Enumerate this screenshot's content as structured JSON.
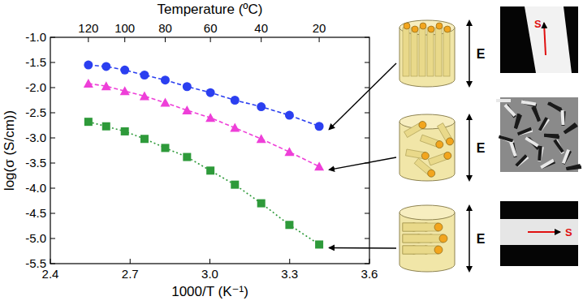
{
  "chart_data": {
    "type": "line",
    "x_label": "1000/T (K⁻¹)",
    "y_label": "log(σ (S/cm))",
    "x2_label": "Temperature (ºC)",
    "xlim": [
      2.4,
      3.6
    ],
    "xticks": [
      2.4,
      2.7,
      {
        "value": 3.0,
        "label": "3.0"
      },
      3.3,
      3.6
    ],
    "x2ticks": [
      {
        "value": 2.543,
        "label": "120"
      },
      {
        "value": 2.68,
        "label": "100"
      },
      {
        "value": 2.832,
        "label": "80"
      },
      {
        "value": 3.002,
        "label": "60"
      },
      {
        "value": 3.193,
        "label": "40"
      },
      {
        "value": 3.411,
        "label": "20"
      }
    ],
    "ylim": [
      -5.5,
      -1.0
    ],
    "yticks": [
      {
        "value": -1.0,
        "label": "-1.0"
      },
      {
        "value": -1.5,
        "label": "-1.5"
      },
      {
        "value": -2.0,
        "label": "-2.0"
      },
      {
        "value": -2.5,
        "label": "-2.5"
      },
      {
        "value": -3.0,
        "label": "-3.0"
      },
      {
        "value": -3.5,
        "label": "-3.5"
      },
      {
        "value": -4.0,
        "label": "-4.0"
      },
      {
        "value": -4.5,
        "label": "-4.5"
      },
      {
        "value": -5.0,
        "label": "-5.0"
      },
      {
        "value": -5.5,
        "label": "-5.5"
      }
    ],
    "grid": false,
    "x": [
      2.543,
      2.61,
      2.68,
      2.754,
      2.832,
      2.914,
      3.002,
      3.094,
      3.193,
      3.299,
      3.411
    ],
    "series": [
      {
        "color": "#2b3ff0",
        "marker": "circle",
        "line_style": "dashed",
        "values": [
          -1.55,
          -1.58,
          -1.65,
          -1.75,
          -1.85,
          -1.98,
          -2.1,
          -2.25,
          -2.38,
          -2.55,
          -2.77
        ]
      },
      {
        "color": "#ee3fd8",
        "marker": "triangle",
        "line_style": "dashed",
        "values": [
          -1.92,
          -1.97,
          -2.07,
          -2.17,
          -2.3,
          -2.45,
          -2.6,
          -2.8,
          -3.02,
          -3.28,
          -3.57
        ]
      },
      {
        "color": "#2e9a3a",
        "marker": "square",
        "line_style": "dotted",
        "values": [
          -2.68,
          -2.77,
          -2.87,
          -3.02,
          -3.2,
          -3.38,
          -3.65,
          -3.93,
          -4.3,
          -4.73,
          -5.12
        ]
      }
    ],
    "annotations": [
      "E",
      "E",
      "E",
      "S",
      "S"
    ]
  }
}
